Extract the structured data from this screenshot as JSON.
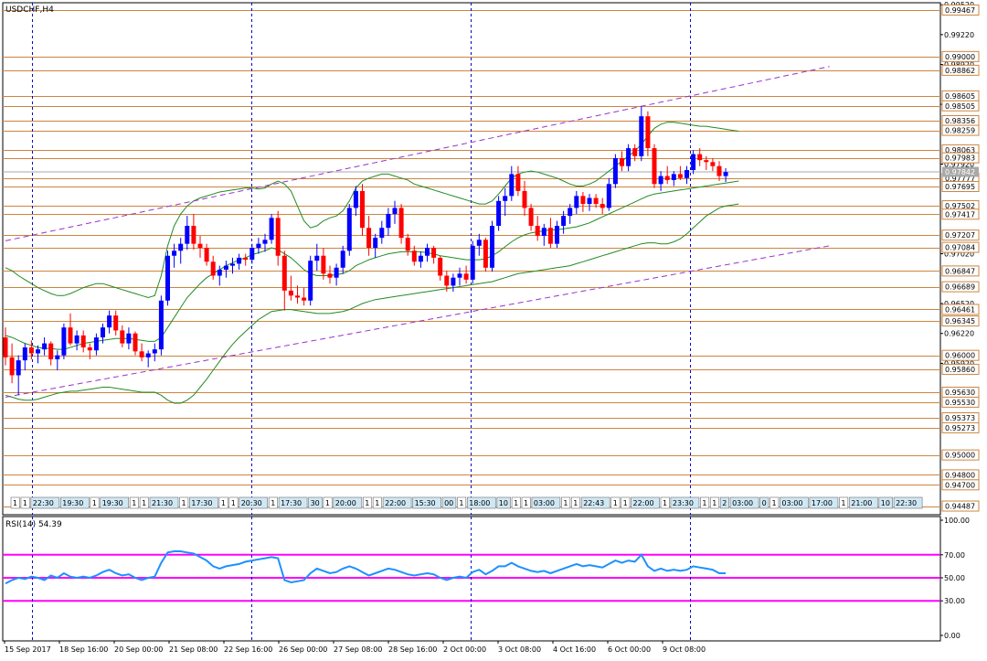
{
  "window": {
    "title": "USDCHF,H4"
  },
  "main_price_axis": {
    "scale_labels": [
      {
        "v": 0.9952,
        "t": "0.99520"
      },
      {
        "v": 0.9922,
        "t": "0.99220"
      },
      {
        "v": 0.9892,
        "t": "0.98920"
      },
      {
        "v": 0.9852,
        "t": "0.98520"
      },
      {
        "v": 0.9792,
        "t": "0.97920"
      },
      {
        "v": 0.9702,
        "t": "0.97020"
      },
      {
        "v": 0.9652,
        "t": "0.96520"
      },
      {
        "v": 0.9622,
        "t": "0.96220"
      },
      {
        "v": 0.9592,
        "t": "0.95920"
      }
    ],
    "level_labels": [
      {
        "v": 0.99467,
        "t": "0.99467"
      },
      {
        "v": 0.99,
        "t": "0.99000"
      },
      {
        "v": 0.98862,
        "t": "0.98862"
      },
      {
        "v": 0.98605,
        "t": "0.98605"
      },
      {
        "v": 0.98505,
        "t": "0.98505"
      },
      {
        "v": 0.98356,
        "t": "0.98356"
      },
      {
        "v": 0.98259,
        "t": "0.98259"
      },
      {
        "v": 0.98063,
        "t": "0.98063"
      },
      {
        "v": 0.97983,
        "t": "0.97983"
      },
      {
        "v": 0.97777,
        "t": "0.97777"
      },
      {
        "v": 0.97695,
        "t": "0.97695"
      },
      {
        "v": 0.97502,
        "t": "0.97502"
      },
      {
        "v": 0.97417,
        "t": "0.97417"
      },
      {
        "v": 0.97207,
        "t": "0.97207"
      },
      {
        "v": 0.97084,
        "t": "0.97084"
      },
      {
        "v": 0.96847,
        "t": "0.96847"
      },
      {
        "v": 0.96689,
        "t": "0.96689"
      },
      {
        "v": 0.96461,
        "t": "0.96461"
      },
      {
        "v": 0.96345,
        "t": "0.96345"
      },
      {
        "v": 0.96,
        "t": "0.96000"
      },
      {
        "v": 0.9586,
        "t": "0.95860"
      },
      {
        "v": 0.9563,
        "t": "0.95630"
      },
      {
        "v": 0.9553,
        "t": "0.95530"
      },
      {
        "v": 0.95373,
        "t": "0.95373"
      },
      {
        "v": 0.95273,
        "t": "0.95273"
      },
      {
        "v": 0.95,
        "t": "0.95000"
      },
      {
        "v": 0.948,
        "t": "0.94800"
      },
      {
        "v": 0.947,
        "t": "0.94700"
      },
      {
        "v": 0.94487,
        "t": "0.94487"
      }
    ],
    "current_price": {
      "v": 0.97842,
      "t": "0.97842"
    }
  },
  "rsi_panel": {
    "label": "RSI(14) 54.39",
    "axis_labels": [
      {
        "v": 100,
        "t": "100.00"
      },
      {
        "v": 70,
        "t": "70.00"
      },
      {
        "v": 50,
        "t": "50.00"
      },
      {
        "v": 30,
        "t": "30.00"
      },
      {
        "v": 0,
        "t": "0.00"
      }
    ],
    "levels": [
      70,
      50,
      30
    ]
  },
  "time_axis": {
    "labels": [
      "15 Sep 2017",
      "18 Sep 16:00",
      "20 Sep 00:00",
      "21 Sep 08:00",
      "22 Sep 16:00",
      "26 Sep 00:00",
      "27 Sep 08:00",
      "28 Sep 16:00",
      "2 Oct 00:00",
      "3 Oct 08:00",
      "4 Oct 16:00",
      "6 Oct 00:00",
      "9 Oct 08:00"
    ]
  },
  "session_markers": [
    "1",
    "1",
    "22:30",
    "19:30",
    "1",
    "19:30",
    "1",
    "1",
    "21:30",
    "1",
    "17:30",
    "1",
    "1",
    "20:30",
    "1",
    "17:30",
    "30",
    "1",
    "20:00",
    "1",
    "1",
    "22:00",
    "15:30",
    "00",
    "1",
    "18:00",
    "10",
    "1",
    "1",
    "03:00",
    "1",
    "1",
    "22:43",
    "1",
    "1",
    "22:00",
    "1",
    "23:30",
    "1",
    "1",
    "2",
    "03:00",
    "0",
    "1",
    "03:00",
    "17:00",
    "1",
    "21:00",
    "10",
    "22:30"
  ],
  "colors": {
    "bull": "#0000ff",
    "bear": "#ff0000",
    "level_line": "#cd853f",
    "channel": "#9932cc",
    "bands": "#228b22",
    "rsi_line": "#1e90ff",
    "rsi_level": "#ff00ff",
    "separator": "#0000cd"
  },
  "chart_data": {
    "type": "candlestick",
    "symbol": "USDCHF",
    "timeframe": "H4",
    "ylim": [
      0.944,
      0.9954
    ],
    "candles": [
      [
        0.9618,
        0.9628,
        0.959,
        0.9598
      ],
      [
        0.9598,
        0.9612,
        0.9572,
        0.958
      ],
      [
        0.958,
        0.96,
        0.956,
        0.9595
      ],
      [
        0.9595,
        0.9612,
        0.9585,
        0.9608
      ],
      [
        0.9608,
        0.9615,
        0.9596,
        0.9602
      ],
      [
        0.9602,
        0.961,
        0.9592,
        0.9606
      ],
      [
        0.9606,
        0.9618,
        0.96,
        0.9612
      ],
      [
        0.9612,
        0.9614,
        0.959,
        0.9596
      ],
      [
        0.9596,
        0.9605,
        0.9585,
        0.96
      ],
      [
        0.96,
        0.9632,
        0.9596,
        0.9628
      ],
      [
        0.9628,
        0.9642,
        0.961,
        0.9612
      ],
      [
        0.9612,
        0.9625,
        0.9605,
        0.962
      ],
      [
        0.962,
        0.9625,
        0.9603,
        0.9608
      ],
      [
        0.9608,
        0.9612,
        0.9596,
        0.9605
      ],
      [
        0.9605,
        0.9622,
        0.96,
        0.9618
      ],
      [
        0.9618,
        0.9632,
        0.9612,
        0.9628
      ],
      [
        0.9628,
        0.9645,
        0.9622,
        0.964
      ],
      [
        0.964,
        0.9645,
        0.962,
        0.9625
      ],
      [
        0.9625,
        0.963,
        0.9608,
        0.9612
      ],
      [
        0.9612,
        0.9628,
        0.9606,
        0.9622
      ],
      [
        0.9622,
        0.9624,
        0.96,
        0.9604
      ],
      [
        0.9604,
        0.9612,
        0.9594,
        0.9598
      ],
      [
        0.9598,
        0.9605,
        0.9588,
        0.9602
      ],
      [
        0.9602,
        0.9612,
        0.9594,
        0.9606
      ],
      [
        0.9606,
        0.966,
        0.96,
        0.9655
      ],
      [
        0.9655,
        0.9705,
        0.965,
        0.97
      ],
      [
        0.97,
        0.9712,
        0.9688,
        0.9705
      ],
      [
        0.9705,
        0.9718,
        0.9692,
        0.9712
      ],
      [
        0.9712,
        0.974,
        0.9706,
        0.973
      ],
      [
        0.973,
        0.9742,
        0.9706,
        0.9712
      ],
      [
        0.9712,
        0.972,
        0.9698,
        0.9708
      ],
      [
        0.9708,
        0.9712,
        0.969,
        0.9694
      ],
      [
        0.9694,
        0.97,
        0.9676,
        0.968
      ],
      [
        0.968,
        0.969,
        0.967,
        0.9686
      ],
      [
        0.9686,
        0.9695,
        0.9678,
        0.969
      ],
      [
        0.969,
        0.9698,
        0.9682,
        0.9692
      ],
      [
        0.9692,
        0.9702,
        0.9686,
        0.9698
      ],
      [
        0.9698,
        0.9702,
        0.969,
        0.9696
      ],
      [
        0.9696,
        0.9712,
        0.9692,
        0.9708
      ],
      [
        0.9708,
        0.9718,
        0.9702,
        0.9712
      ],
      [
        0.9712,
        0.9722,
        0.9704,
        0.9716
      ],
      [
        0.9716,
        0.9742,
        0.9712,
        0.9738
      ],
      [
        0.9738,
        0.9745,
        0.969,
        0.97
      ],
      [
        0.97,
        0.9705,
        0.9645,
        0.9665
      ],
      [
        0.9665,
        0.968,
        0.9655,
        0.966
      ],
      [
        0.966,
        0.967,
        0.9652,
        0.9658
      ],
      [
        0.9658,
        0.9668,
        0.965,
        0.9655
      ],
      [
        0.9655,
        0.97,
        0.965,
        0.9695
      ],
      [
        0.9695,
        0.9712,
        0.9685,
        0.97
      ],
      [
        0.97,
        0.9708,
        0.9676,
        0.9682
      ],
      [
        0.9682,
        0.969,
        0.9672,
        0.9678
      ],
      [
        0.9678,
        0.9692,
        0.967,
        0.9688
      ],
      [
        0.9688,
        0.971,
        0.9682,
        0.9705
      ],
      [
        0.9705,
        0.9752,
        0.97,
        0.9748
      ],
      [
        0.9748,
        0.977,
        0.974,
        0.9765
      ],
      [
        0.9765,
        0.9772,
        0.972,
        0.9728
      ],
      [
        0.9728,
        0.974,
        0.97,
        0.9708
      ],
      [
        0.9708,
        0.9722,
        0.9698,
        0.9718
      ],
      [
        0.9718,
        0.9735,
        0.9712,
        0.9728
      ],
      [
        0.9728,
        0.9748,
        0.972,
        0.9742
      ],
      [
        0.9742,
        0.9755,
        0.9732,
        0.9748
      ],
      [
        0.9748,
        0.9752,
        0.9712,
        0.9718
      ],
      [
        0.9718,
        0.9722,
        0.97,
        0.9705
      ],
      [
        0.9705,
        0.971,
        0.969,
        0.9694
      ],
      [
        0.9694,
        0.9704,
        0.9688,
        0.97
      ],
      [
        0.97,
        0.9712,
        0.9694,
        0.9708
      ],
      [
        0.9708,
        0.971,
        0.9692,
        0.9698
      ],
      [
        0.9698,
        0.97,
        0.9675,
        0.968
      ],
      [
        0.968,
        0.9685,
        0.9664,
        0.967
      ],
      [
        0.967,
        0.9682,
        0.9664,
        0.9678
      ],
      [
        0.9678,
        0.9688,
        0.967,
        0.9682
      ],
      [
        0.9682,
        0.969,
        0.9672,
        0.9676
      ],
      [
        0.9676,
        0.9715,
        0.9672,
        0.971
      ],
      [
        0.971,
        0.9722,
        0.97,
        0.9716
      ],
      [
        0.9716,
        0.9718,
        0.9684,
        0.9688
      ],
      [
        0.9688,
        0.9735,
        0.9684,
        0.973
      ],
      [
        0.973,
        0.976,
        0.9725,
        0.9755
      ],
      [
        0.9755,
        0.9768,
        0.974,
        0.976
      ],
      [
        0.976,
        0.979,
        0.9755,
        0.9782
      ],
      [
        0.9782,
        0.979,
        0.976,
        0.9765
      ],
      [
        0.9765,
        0.9775,
        0.974,
        0.9748
      ],
      [
        0.9748,
        0.9752,
        0.9725,
        0.973
      ],
      [
        0.973,
        0.974,
        0.9715,
        0.972
      ],
      [
        0.972,
        0.9732,
        0.971,
        0.9728
      ],
      [
        0.9728,
        0.9738,
        0.9708,
        0.9712
      ],
      [
        0.9712,
        0.9735,
        0.9708,
        0.973
      ],
      [
        0.973,
        0.9745,
        0.9722,
        0.974
      ],
      [
        0.974,
        0.9752,
        0.9732,
        0.9748
      ],
      [
        0.9748,
        0.9765,
        0.9742,
        0.976
      ],
      [
        0.976,
        0.9764,
        0.9744,
        0.9752
      ],
      [
        0.9752,
        0.9762,
        0.9745,
        0.9758
      ],
      [
        0.9758,
        0.9762,
        0.9748,
        0.9752
      ],
      [
        0.9752,
        0.9758,
        0.9742,
        0.9748
      ],
      [
        0.9748,
        0.9778,
        0.9745,
        0.9772
      ],
      [
        0.9772,
        0.9802,
        0.9768,
        0.9798
      ],
      [
        0.9798,
        0.9805,
        0.9785,
        0.979
      ],
      [
        0.979,
        0.9812,
        0.9785,
        0.9808
      ],
      [
        0.9808,
        0.9812,
        0.9795,
        0.98
      ],
      [
        0.98,
        0.985,
        0.9795,
        0.984
      ],
      [
        0.984,
        0.9845,
        0.98,
        0.9808
      ],
      [
        0.9808,
        0.9812,
        0.9768,
        0.9772
      ],
      [
        0.9772,
        0.9785,
        0.9765,
        0.978
      ],
      [
        0.978,
        0.979,
        0.9772,
        0.9776
      ],
      [
        0.9776,
        0.9785,
        0.977,
        0.9782
      ],
      [
        0.9782,
        0.979,
        0.9776,
        0.9778
      ],
      [
        0.9778,
        0.979,
        0.9772,
        0.9786
      ],
      [
        0.9786,
        0.9806,
        0.9782,
        0.9802
      ],
      [
        0.9802,
        0.9808,
        0.979,
        0.9796
      ],
      [
        0.9796,
        0.98,
        0.9786,
        0.9794
      ],
      [
        0.9794,
        0.9798,
        0.9785,
        0.979
      ],
      [
        0.979,
        0.9795,
        0.9775,
        0.978
      ],
      [
        0.978,
        0.9788,
        0.9774,
        0.9784
      ]
    ],
    "bands": {
      "upper": [
        0.9688,
        0.9685,
        0.968,
        0.9676,
        0.9672,
        0.9668,
        0.9665,
        0.9662,
        0.966,
        0.966,
        0.9662,
        0.9665,
        0.9668,
        0.967,
        0.9672,
        0.9672,
        0.967,
        0.9668,
        0.9666,
        0.9664,
        0.9662,
        0.966,
        0.9658,
        0.966,
        0.968,
        0.971,
        0.973,
        0.9742,
        0.975,
        0.9755,
        0.9758,
        0.976,
        0.9762,
        0.9764,
        0.9765,
        0.9766,
        0.9767,
        0.9768,
        0.9768,
        0.9767,
        0.9768,
        0.9772,
        0.9775,
        0.9772,
        0.9765,
        0.975,
        0.9735,
        0.9728,
        0.973,
        0.9735,
        0.9738,
        0.974,
        0.9745,
        0.9755,
        0.9768,
        0.9775,
        0.9778,
        0.978,
        0.9782,
        0.9782,
        0.978,
        0.9778,
        0.9776,
        0.9772,
        0.977,
        0.9768,
        0.9766,
        0.9764,
        0.9762,
        0.976,
        0.9758,
        0.9756,
        0.9754,
        0.9752,
        0.9752,
        0.9755,
        0.9762,
        0.977,
        0.9778,
        0.9782,
        0.9784,
        0.9785,
        0.9784,
        0.9782,
        0.978,
        0.9778,
        0.9775,
        0.9772,
        0.977,
        0.977,
        0.9772,
        0.9775,
        0.978,
        0.9785,
        0.979,
        0.9795,
        0.98,
        0.9805,
        0.9812,
        0.982,
        0.9828,
        0.9832,
        0.9834,
        0.9834,
        0.9833,
        0.9832,
        0.9831,
        0.983,
        0.983,
        0.9829,
        0.9828,
        0.9827,
        0.9826,
        0.9825
      ],
      "middle": [
        0.962,
        0.9618,
        0.9615,
        0.9612,
        0.961,
        0.9608,
        0.9607,
        0.9607,
        0.9606,
        0.9606,
        0.9608,
        0.961,
        0.9612,
        0.9613,
        0.9614,
        0.9615,
        0.9616,
        0.9617,
        0.9617,
        0.9617,
        0.9616,
        0.9615,
        0.9614,
        0.9614,
        0.9618,
        0.9628,
        0.9638,
        0.9648,
        0.9658,
        0.9665,
        0.9672,
        0.9678,
        0.9682,
        0.9686,
        0.969,
        0.9693,
        0.9696,
        0.9698,
        0.9701,
        0.9703,
        0.9705,
        0.9708,
        0.9706,
        0.9702,
        0.9698,
        0.9692,
        0.9686,
        0.9682,
        0.968,
        0.968,
        0.968,
        0.9681,
        0.9682,
        0.9685,
        0.969,
        0.9693,
        0.9696,
        0.9698,
        0.97,
        0.9702,
        0.9703,
        0.9704,
        0.9704,
        0.9704,
        0.9704,
        0.9703,
        0.9702,
        0.97,
        0.9699,
        0.9698,
        0.9697,
        0.9696,
        0.9696,
        0.9696,
        0.9697,
        0.97,
        0.9704,
        0.9709,
        0.9714,
        0.9718,
        0.9721,
        0.9723,
        0.9724,
        0.9725,
        0.9726,
        0.9726,
        0.9727,
        0.9728,
        0.9729,
        0.9731,
        0.9733,
        0.9736,
        0.9739,
        0.9742,
        0.9745,
        0.9748,
        0.9751,
        0.9754,
        0.9757,
        0.976,
        0.9762,
        0.9763,
        0.9764,
        0.9765,
        0.9766,
        0.9767,
        0.9768,
        0.9769,
        0.977,
        0.9771,
        0.9772,
        0.9773,
        0.9774,
        0.9775
      ],
      "lower": [
        0.956,
        0.9558,
        0.9556,
        0.9555,
        0.9555,
        0.9556,
        0.9558,
        0.956,
        0.9562,
        0.9563,
        0.9564,
        0.9564,
        0.9565,
        0.9566,
        0.9567,
        0.9568,
        0.9568,
        0.9567,
        0.9566,
        0.9565,
        0.9564,
        0.9563,
        0.9563,
        0.9563,
        0.956,
        0.9555,
        0.9552,
        0.9552,
        0.9555,
        0.956,
        0.9568,
        0.9576,
        0.9585,
        0.9594,
        0.9603,
        0.9611,
        0.9618,
        0.9624,
        0.963,
        0.9636,
        0.964,
        0.9644,
        0.9645,
        0.9646,
        0.9646,
        0.9645,
        0.9644,
        0.9643,
        0.9642,
        0.9642,
        0.9642,
        0.9643,
        0.9644,
        0.9646,
        0.9649,
        0.9652,
        0.9654,
        0.9656,
        0.9657,
        0.9658,
        0.9659,
        0.966,
        0.9661,
        0.9662,
        0.9663,
        0.9664,
        0.9665,
        0.9666,
        0.9667,
        0.9668,
        0.9669,
        0.967,
        0.9671,
        0.9672,
        0.9673,
        0.9674,
        0.9676,
        0.9678,
        0.968,
        0.9682,
        0.9683,
        0.9684,
        0.9685,
        0.9686,
        0.9687,
        0.9688,
        0.9689,
        0.969,
        0.9692,
        0.9694,
        0.9696,
        0.9698,
        0.97,
        0.9702,
        0.9704,
        0.9706,
        0.9708,
        0.971,
        0.9712,
        0.9713,
        0.9713,
        0.9712,
        0.9712,
        0.9714,
        0.9717,
        0.9722,
        0.9728,
        0.9734,
        0.974,
        0.9744,
        0.9748,
        0.975,
        0.9751,
        0.9752
      ]
    },
    "channel": [
      {
        "from": [
          0,
          0.9715
        ],
        "to": [
          127,
          0.989
        ]
      },
      {
        "from": [
          0,
          0.9558
        ],
        "to": [
          127,
          0.971
        ]
      }
    ],
    "rsi": [
      45,
      48,
      50,
      49,
      51,
      50,
      48,
      52,
      50,
      54,
      51,
      50,
      51,
      50,
      52,
      55,
      57,
      54,
      52,
      53,
      50,
      48,
      50,
      51,
      63,
      72,
      73,
      73,
      72,
      71,
      68,
      65,
      60,
      58,
      60,
      61,
      62,
      64,
      65,
      66,
      67,
      68,
      67,
      48,
      46,
      47,
      48,
      54,
      58,
      56,
      54,
      55,
      58,
      60,
      58,
      55,
      52,
      54,
      56,
      58,
      57,
      55,
      53,
      52,
      53,
      54,
      53,
      50,
      48,
      50,
      51,
      50,
      55,
      57,
      53,
      56,
      60,
      60,
      63,
      60,
      58,
      56,
      55,
      56,
      54,
      56,
      58,
      60,
      62,
      60,
      61,
      60,
      59,
      62,
      65,
      63,
      65,
      64,
      70,
      60,
      56,
      58,
      56,
      57,
      56,
      57,
      60,
      59,
      58,
      57,
      54,
      54
    ]
  }
}
